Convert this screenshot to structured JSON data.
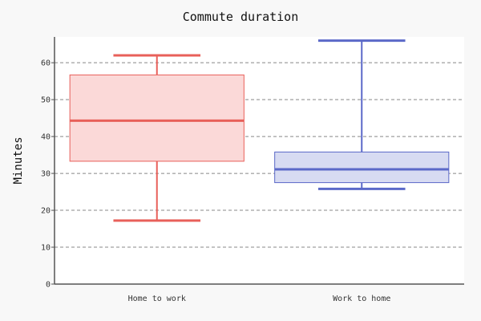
{
  "chart_data": {
    "type": "boxplot",
    "title": "Commute duration",
    "xlabel": "",
    "ylabel": "Minutes",
    "ylim": [
      0,
      67
    ],
    "yticks": [
      0,
      10,
      20,
      30,
      40,
      50,
      60
    ],
    "grid": true,
    "categories": [
      "Home to work",
      "Work to home"
    ],
    "boxes": [
      {
        "category": "Home to work",
        "min": 17.2,
        "q1": 33.3,
        "median": 44.3,
        "q3": 56.7,
        "max": 62.0,
        "color": "#e8605a",
        "fill": "#fbd9d8"
      },
      {
        "category": "Work to home",
        "min": 25.8,
        "q1": 27.5,
        "median": 31.1,
        "q3": 35.8,
        "max": 66.0,
        "color": "#5b69c8",
        "fill": "#d7dbf2"
      }
    ]
  }
}
